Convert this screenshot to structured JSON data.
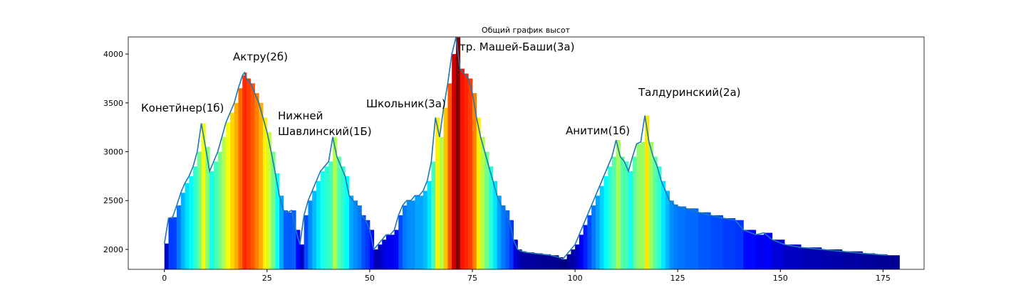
{
  "chart_data": {
    "type": "area",
    "title": "Общий график высот",
    "x": [
      0,
      1,
      2,
      3,
      4,
      5,
      6,
      7,
      8,
      9,
      10,
      11,
      12,
      13,
      14,
      15,
      16,
      17,
      18,
      19,
      19.5,
      20,
      21,
      22,
      23,
      24,
      25,
      26,
      27,
      28,
      29,
      30,
      31,
      32,
      33,
      34,
      35,
      36,
      37,
      38,
      39,
      40,
      41,
      42,
      43,
      44,
      45,
      46,
      47,
      48,
      49,
      50,
      51,
      52,
      53,
      54,
      55,
      56,
      57,
      58,
      59,
      60,
      61,
      62,
      63,
      64,
      65,
      66,
      67,
      68,
      69,
      70,
      71,
      72,
      73,
      74,
      75,
      76,
      77,
      78,
      79,
      80,
      81,
      82,
      83,
      84,
      85,
      86,
      87,
      88,
      90,
      92,
      94,
      96,
      97,
      98,
      99,
      100,
      101,
      102,
      103,
      104,
      105,
      106,
      107,
      108,
      109,
      110,
      111,
      112,
      113,
      114,
      115,
      116,
      117,
      118,
      119,
      120,
      121,
      122,
      123,
      124,
      125,
      127,
      130,
      133,
      136,
      139,
      141,
      144,
      146,
      148,
      151,
      155,
      160,
      165,
      170,
      173,
      176
    ],
    "values": [
      2060,
      2320,
      2330,
      2450,
      2580,
      2680,
      2750,
      2850,
      3000,
      3290,
      3050,
      2800,
      2900,
      3000,
      3150,
      3300,
      3400,
      3500,
      3650,
      3780,
      3810,
      3750,
      3700,
      3600,
      3500,
      3350,
      3200,
      3000,
      2780,
      2550,
      2400,
      2380,
      2400,
      2200,
      2050,
      2350,
      2500,
      2600,
      2700,
      2800,
      2850,
      2900,
      3150,
      2950,
      2850,
      2750,
      2550,
      2500,
      2450,
      2350,
      2300,
      2200,
      2000,
      2050,
      2100,
      2150,
      2150,
      2200,
      2350,
      2450,
      2500,
      2500,
      2550,
      2550,
      2600,
      2700,
      2900,
      3350,
      3150,
      3450,
      3700,
      4000,
      4170,
      3850,
      3800,
      3750,
      3600,
      3350,
      3150,
      3000,
      2850,
      2700,
      2550,
      2450,
      2400,
      2300,
      2100,
      2000,
      1980,
      1970,
      1960,
      1950,
      1940,
      1920,
      1900,
      1950,
      2000,
      2050,
      2150,
      2250,
      2350,
      2450,
      2550,
      2650,
      2750,
      2850,
      2950,
      3120,
      2950,
      2900,
      2800,
      2950,
      3080,
      3100,
      3370,
      3100,
      2950,
      2850,
      2700,
      2600,
      2500,
      2460,
      2440,
      2420,
      2380,
      2350,
      2320,
      2300,
      2200,
      2150,
      2170,
      2100,
      2050,
      2020,
      2000,
      1980,
      1960,
      1950,
      1940
    ],
    "line_color": "#1f77b4",
    "colormap": "jet",
    "xlim": [
      -8.8,
      185
    ],
    "ylim": [
      1796,
      4175
    ],
    "xticks": [
      0,
      25,
      50,
      75,
      100,
      125,
      150,
      175
    ],
    "yticks": [
      2000,
      2500,
      3000,
      3500,
      4000
    ],
    "annotations": [
      "Конетйнер(1б)",
      "Актру(2б)",
      "Нижней\nШавлинский(1Б)",
      "Школьник(3а)",
      "тр. Машей-Баши(3а)",
      "Анитим(1б)",
      "Талдуринский(2а)"
    ]
  }
}
